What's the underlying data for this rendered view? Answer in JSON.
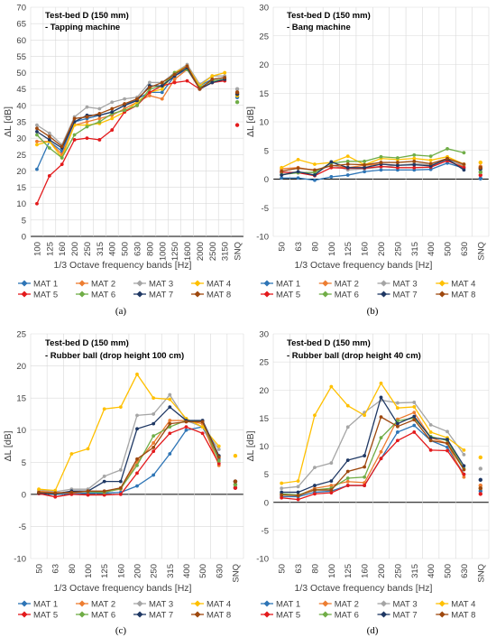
{
  "series_style": [
    {
      "name": "MAT 1",
      "color": "#2e75b6"
    },
    {
      "name": "MAT 2",
      "color": "#ed7d31"
    },
    {
      "name": "MAT 3",
      "color": "#a5a5a5"
    },
    {
      "name": "MAT 4",
      "color": "#ffc000"
    },
    {
      "name": "MAT 5",
      "color": "#e31a1c"
    },
    {
      "name": "MAT 6",
      "color": "#70ad47"
    },
    {
      "name": "MAT 7",
      "color": "#1f3864"
    },
    {
      "name": "MAT 8",
      "color": "#9e480e"
    }
  ],
  "chart_data": [
    {
      "type": "line",
      "panel_label": "(a)",
      "title_line1": "Test-bed D (150 mm)",
      "title_line2": "- Tapping machine",
      "xlabel": "1/3 Octave frequency bands [Hz]",
      "ylabel": "ΔL [dB]",
      "ylim": [
        0,
        70
      ],
      "ytick_step": 5,
      "categories": [
        "100",
        "125",
        "160",
        "200",
        "250",
        "315",
        "400",
        "500",
        "630",
        "800",
        "1000",
        "1250",
        "1600",
        "2000",
        "2500",
        "3150"
      ],
      "extra_category": "SNQ",
      "legend": "bottom",
      "grid": true,
      "series": [
        {
          "name": "MAT 1",
          "values": [
            20.5,
            29,
            26,
            35,
            36,
            37,
            38,
            40,
            42,
            44,
            44,
            49,
            51,
            46,
            48,
            48.5
          ],
          "snq": 42.5
        },
        {
          "name": "MAT 2",
          "values": [
            29,
            29,
            25,
            34,
            35,
            36,
            37,
            39,
            41,
            43,
            42,
            48,
            51,
            45,
            47,
            48
          ],
          "snq": 43.5
        },
        {
          "name": "MAT 3",
          "values": [
            34,
            31.5,
            28,
            36.5,
            39.5,
            39,
            41,
            42,
            42.5,
            47,
            47,
            50,
            52.5,
            46.5,
            49,
            49
          ],
          "snq": 45
        },
        {
          "name": "MAT 4",
          "values": [
            28,
            29,
            24,
            34,
            34,
            34.5,
            36,
            38,
            41,
            44,
            45,
            50,
            52,
            46,
            49,
            50
          ],
          "snq": 43
        },
        {
          "name": "MAT 5",
          "values": [
            10,
            18.5,
            22,
            29.5,
            30,
            29.5,
            32.5,
            38,
            40,
            44,
            46,
            47,
            47.5,
            45,
            47,
            47.5
          ],
          "snq": 34
        },
        {
          "name": "MAT 6",
          "values": [
            31,
            27,
            24,
            31,
            33.5,
            35,
            37.5,
            38.5,
            40,
            45,
            46,
            50,
            51,
            45.5,
            47.5,
            48
          ],
          "snq": 41
        },
        {
          "name": "MAT 7",
          "values": [
            32,
            29.5,
            27,
            35,
            37,
            37,
            38,
            40,
            41.5,
            46,
            46,
            49,
            51.5,
            45,
            47,
            48
          ],
          "snq": 43.5
        },
        {
          "name": "MAT 8",
          "values": [
            33,
            30.5,
            27.5,
            36,
            36.5,
            37.5,
            39,
            40.5,
            42,
            45.5,
            47,
            49.5,
            52,
            45,
            48,
            48.5
          ],
          "snq": 44
        }
      ]
    },
    {
      "type": "line",
      "panel_label": "(b)",
      "title_line1": "Test-bed D (150 mm)",
      "title_line2": "- Bang machine",
      "xlabel": "1/3 Octave frequency bands [Hz]",
      "ylabel": "ΔL [dB]",
      "ylim": [
        -10,
        30
      ],
      "ytick_step": 5,
      "categories": [
        "50",
        "63",
        "80",
        "100",
        "125",
        "160",
        "200",
        "250",
        "315",
        "400",
        "500",
        "630"
      ],
      "extra_category": "SNQ",
      "legend": "bottom",
      "grid": true,
      "series": [
        {
          "name": "MAT 1",
          "values": [
            0.2,
            0.2,
            -0.2,
            0.4,
            0.7,
            1.3,
            1.6,
            1.6,
            1.6,
            1.7,
            2.8,
            1.9
          ],
          "snq": 0.1
        },
        {
          "name": "MAT 2",
          "values": [
            1.8,
            2.0,
            1.5,
            2.4,
            2.0,
            2.4,
            2.6,
            2.4,
            2.6,
            2.4,
            3.5,
            2.2
          ],
          "snq": 2.2
        },
        {
          "name": "MAT 3",
          "values": [
            1.2,
            1.2,
            1.1,
            2.5,
            1.6,
            1.8,
            2.1,
            2.4,
            2.7,
            2.5,
            3.4,
            2.4
          ],
          "snq": 1.3
        },
        {
          "name": "MAT 4",
          "values": [
            2.0,
            3.4,
            2.6,
            2.9,
            4.0,
            2.5,
            3.6,
            3.4,
            3.6,
            3.3,
            3.9,
            2.6
          ],
          "snq": 2.9
        },
        {
          "name": "MAT 5",
          "values": [
            1.2,
            1.1,
            0.6,
            2.0,
            1.9,
            1.9,
            2.2,
            2.0,
            2.0,
            2.1,
            3.2,
            2.0
          ],
          "snq": 0.7
        },
        {
          "name": "MAT 6",
          "values": [
            0.8,
            1.1,
            1.2,
            2.8,
            3.1,
            3.1,
            3.9,
            3.7,
            4.2,
            4.0,
            5.3,
            4.6
          ],
          "snq": 1.2
        },
        {
          "name": "MAT 7",
          "values": [
            0.7,
            1.3,
            0.7,
            3.0,
            2.0,
            2.0,
            2.6,
            2.4,
            2.5,
            2.3,
            3.5,
            1.6
          ],
          "snq": 1.8
        },
        {
          "name": "MAT 8",
          "values": [
            1.4,
            1.9,
            1.6,
            2.3,
            2.6,
            2.5,
            2.9,
            2.9,
            3.1,
            2.7,
            3.6,
            2.6
          ],
          "snq": 2.0
        }
      ]
    },
    {
      "type": "line",
      "panel_label": "(c)",
      "title_line1": "Test-bed D (150 mm)",
      "title_line2": "- Rubber ball (drop height 100 cm)",
      "xlabel": "1/3 Octave frequency bands [Hz]",
      "ylabel": "ΔL [dB]",
      "ylim": [
        -10,
        25
      ],
      "ytick_step": 5,
      "categories": [
        "50",
        "63",
        "80",
        "100",
        "125",
        "160",
        "200",
        "250",
        "315",
        "400",
        "500",
        "630"
      ],
      "extra_category": "SNQ",
      "legend": "bottom",
      "grid": true,
      "series": [
        {
          "name": "MAT 1",
          "values": [
            0.2,
            0.0,
            0.1,
            0.2,
            0.2,
            0.3,
            1.3,
            3.0,
            6.3,
            10.0,
            10.5,
            5.5
          ],
          "snq": 1.0
        },
        {
          "name": "MAT 2",
          "values": [
            0.5,
            0.3,
            0.2,
            0.5,
            0.4,
            0.8,
            5.0,
            8.0,
            11.5,
            11.5,
            11.0,
            4.5
          ],
          "snq": 1.5
        },
        {
          "name": "MAT 3",
          "values": [
            0.7,
            0.4,
            0.8,
            0.8,
            2.8,
            3.8,
            12.3,
            12.5,
            15.5,
            11.5,
            10.5,
            7.0
          ],
          "snq": 2.0
        },
        {
          "name": "MAT 4",
          "values": [
            0.8,
            0.6,
            6.3,
            7.1,
            13.3,
            13.6,
            18.7,
            15.0,
            14.8,
            11.8,
            10.5,
            7.5
          ],
          "snq": 6.0
        },
        {
          "name": "MAT 5",
          "values": [
            0.1,
            -0.4,
            0.0,
            -0.1,
            -0.1,
            0.0,
            3.3,
            6.7,
            9.5,
            10.5,
            9.5,
            4.8
          ],
          "snq": 1.0
        },
        {
          "name": "MAT 6",
          "values": [
            0.3,
            0.1,
            0.4,
            0.4,
            0.3,
            0.9,
            4.5,
            9.1,
            10.5,
            11.5,
            11.3,
            5.2
          ],
          "snq": 1.5
        },
        {
          "name": "MAT 7",
          "values": [
            0.2,
            0.1,
            0.5,
            0.5,
            2.0,
            2.0,
            10.2,
            11.0,
            13.6,
            11.5,
            11.5,
            6.0
          ],
          "snq": 2.0
        },
        {
          "name": "MAT 8",
          "values": [
            0.3,
            0.2,
            0.3,
            0.5,
            0.5,
            1.0,
            5.5,
            7.3,
            11.0,
            11.3,
            11.3,
            5.8
          ],
          "snq": 2.0
        }
      ]
    },
    {
      "type": "line",
      "panel_label": "(d)",
      "title_line1": "Test-bed D (150 mm)",
      "title_line2": "- Rubber ball (drop height 40 cm)",
      "xlabel": "1/3 Octave frequency bands [Hz]",
      "ylabel": "ΔL [dB]",
      "ylim": [
        -10,
        30
      ],
      "ytick_step": 5,
      "categories": [
        "50",
        "63",
        "80",
        "100",
        "125",
        "160",
        "200",
        "250",
        "315",
        "400",
        "500",
        "630"
      ],
      "extra_category": "SNQ",
      "legend": "bottom",
      "grid": true,
      "series": [
        {
          "name": "MAT 1",
          "values": [
            1.0,
            1.0,
            1.8,
            2.0,
            3.0,
            3.0,
            7.8,
            12.5,
            13.7,
            11.0,
            9.8,
            5.0
          ],
          "snq": 2.0
        },
        {
          "name": "MAT 2",
          "values": [
            1.5,
            1.2,
            2.5,
            3.0,
            3.7,
            3.5,
            9.0,
            14.8,
            16.0,
            11.5,
            10.5,
            4.5
          ],
          "snq": 3.0
        },
        {
          "name": "MAT 3",
          "values": [
            2.5,
            2.8,
            6.2,
            7.0,
            13.4,
            16.0,
            18.2,
            17.7,
            17.8,
            13.8,
            12.6,
            8.5
          ],
          "snq": 6.0
        },
        {
          "name": "MAT 4",
          "values": [
            3.4,
            3.8,
            15.5,
            20.6,
            17.2,
            15.5,
            21.2,
            16.8,
            17.0,
            12.5,
            11.5,
            9.3
          ],
          "snq": 8.0
        },
        {
          "name": "MAT 5",
          "values": [
            0.8,
            0.5,
            1.5,
            1.7,
            3.0,
            3.0,
            7.8,
            11.0,
            12.5,
            9.3,
            9.2,
            5.0
          ],
          "snq": 1.5
        },
        {
          "name": "MAT 6",
          "values": [
            1.5,
            1.3,
            2.2,
            2.5,
            4.3,
            4.5,
            11.5,
            14.5,
            15.0,
            11.7,
            11.0,
            6.0
          ],
          "snq": 2.5
        },
        {
          "name": "MAT 7",
          "values": [
            1.8,
            1.8,
            3.0,
            3.8,
            7.5,
            8.3,
            18.7,
            14.0,
            15.3,
            11.5,
            11.2,
            6.5
          ],
          "snq": 4.0
        },
        {
          "name": "MAT 8",
          "values": [
            1.3,
            1.2,
            2.2,
            2.2,
            5.5,
            6.3,
            15.2,
            13.5,
            14.7,
            11.0,
            10.5,
            5.8
          ],
          "snq": 2.5
        }
      ]
    }
  ]
}
